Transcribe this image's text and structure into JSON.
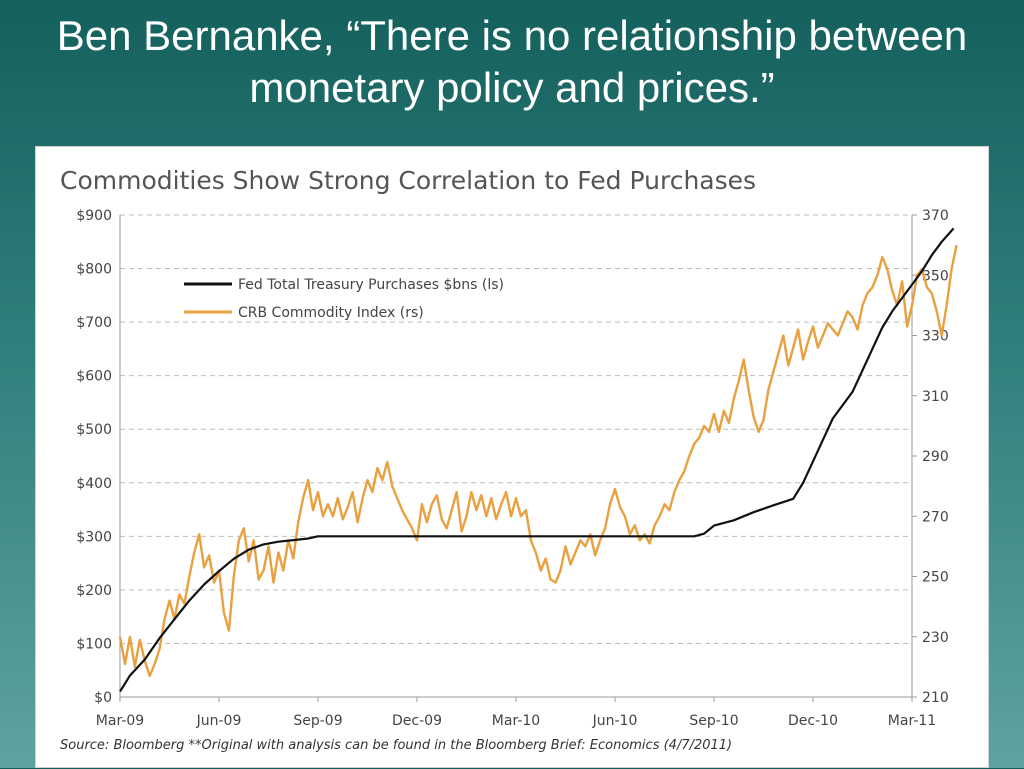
{
  "slide": {
    "title_line1": "Ben Bernanke, “There is no relationship between",
    "title_line2": "monetary policy and prices.”"
  },
  "chart_data": {
    "type": "line",
    "title": "Commodities Show Strong Correlation to Fed Purchases",
    "x_categories": [
      "Mar-09",
      "Jun-09",
      "Sep-09",
      "Dec-09",
      "Mar-10",
      "Jun-10",
      "Sep-10",
      "Dec-10",
      "Mar-11"
    ],
    "y_left": {
      "min": 0,
      "max": 900,
      "ticks": [
        0,
        100,
        200,
        300,
        400,
        500,
        600,
        700,
        800,
        900
      ],
      "tick_labels": [
        "$0",
        "$100",
        "$200",
        "$300",
        "$400",
        "$500",
        "$600",
        "$700",
        "$800",
        "$900"
      ]
    },
    "y_right": {
      "min": 210,
      "max": 370,
      "ticks": [
        210,
        230,
        250,
        270,
        290,
        310,
        330,
        350,
        370
      ],
      "tick_labels": [
        "210",
        "230",
        "250",
        "270",
        "290",
        "310",
        "330",
        "350",
        "370"
      ]
    },
    "grid": true,
    "legend_position": "top-left",
    "series": [
      {
        "name": "Fed Total Treasury Purchases $bns (ls)",
        "axis": "left",
        "color": "#111111",
        "points": [
          [
            0,
            10
          ],
          [
            0.1,
            40
          ],
          [
            0.25,
            70
          ],
          [
            0.4,
            110
          ],
          [
            0.55,
            145
          ],
          [
            0.7,
            180
          ],
          [
            0.85,
            210
          ],
          [
            1.0,
            235
          ],
          [
            1.15,
            258
          ],
          [
            1.3,
            275
          ],
          [
            1.45,
            285
          ],
          [
            1.6,
            290
          ],
          [
            1.75,
            293
          ],
          [
            1.9,
            296
          ],
          [
            2.0,
            300
          ],
          [
            2.3,
            300
          ],
          [
            2.6,
            300
          ],
          [
            3.0,
            300
          ],
          [
            3.5,
            300
          ],
          [
            4.0,
            300
          ],
          [
            4.5,
            300
          ],
          [
            5.0,
            300
          ],
          [
            5.5,
            300
          ],
          [
            5.8,
            300
          ],
          [
            5.9,
            305
          ],
          [
            6.0,
            320
          ],
          [
            6.2,
            330
          ],
          [
            6.4,
            345
          ],
          [
            6.6,
            358
          ],
          [
            6.8,
            370
          ],
          [
            6.9,
            400
          ],
          [
            7.0,
            440
          ],
          [
            7.1,
            480
          ],
          [
            7.2,
            520
          ],
          [
            7.3,
            545
          ],
          [
            7.4,
            570
          ],
          [
            7.5,
            610
          ],
          [
            7.6,
            650
          ],
          [
            7.7,
            690
          ],
          [
            7.8,
            720
          ],
          [
            7.9,
            745
          ],
          [
            8.0,
            770
          ],
          [
            8.1,
            795
          ],
          [
            8.2,
            825
          ],
          [
            8.3,
            850
          ],
          [
            8.42,
            875
          ]
        ]
      },
      {
        "name": "CRB Commodity Index (rs)",
        "axis": "right",
        "color": "#e8a040",
        "points": [
          [
            0,
            230
          ],
          [
            0.05,
            221
          ],
          [
            0.1,
            230
          ],
          [
            0.15,
            220
          ],
          [
            0.2,
            229
          ],
          [
            0.25,
            222
          ],
          [
            0.3,
            217
          ],
          [
            0.35,
            221
          ],
          [
            0.4,
            226
          ],
          [
            0.45,
            236
          ],
          [
            0.5,
            242
          ],
          [
            0.55,
            236
          ],
          [
            0.6,
            244
          ],
          [
            0.65,
            241
          ],
          [
            0.7,
            250
          ],
          [
            0.75,
            258
          ],
          [
            0.8,
            264
          ],
          [
            0.85,
            253
          ],
          [
            0.9,
            257
          ],
          [
            0.95,
            248
          ],
          [
            1.0,
            252
          ],
          [
            1.05,
            238
          ],
          [
            1.1,
            232
          ],
          [
            1.15,
            250
          ],
          [
            1.2,
            262
          ],
          [
            1.25,
            266
          ],
          [
            1.3,
            255
          ],
          [
            1.35,
            262
          ],
          [
            1.4,
            249
          ],
          [
            1.45,
            252
          ],
          [
            1.5,
            260
          ],
          [
            1.55,
            248
          ],
          [
            1.6,
            258
          ],
          [
            1.65,
            252
          ],
          [
            1.7,
            262
          ],
          [
            1.75,
            256
          ],
          [
            1.8,
            268
          ],
          [
            1.85,
            276
          ],
          [
            1.9,
            282
          ],
          [
            1.95,
            272
          ],
          [
            2.0,
            278
          ],
          [
            2.05,
            270
          ],
          [
            2.1,
            274
          ],
          [
            2.15,
            270
          ],
          [
            2.2,
            276
          ],
          [
            2.25,
            269
          ],
          [
            2.3,
            273
          ],
          [
            2.35,
            278
          ],
          [
            2.4,
            268
          ],
          [
            2.45,
            276
          ],
          [
            2.5,
            282
          ],
          [
            2.55,
            278
          ],
          [
            2.6,
            286
          ],
          [
            2.65,
            282
          ],
          [
            2.7,
            288
          ],
          [
            2.75,
            280
          ],
          [
            2.8,
            276
          ],
          [
            2.85,
            272
          ],
          [
            2.9,
            269
          ],
          [
            2.95,
            266
          ],
          [
            3.0,
            262
          ],
          [
            3.05,
            274
          ],
          [
            3.1,
            268
          ],
          [
            3.15,
            274
          ],
          [
            3.2,
            277
          ],
          [
            3.25,
            269
          ],
          [
            3.3,
            266
          ],
          [
            3.35,
            272
          ],
          [
            3.4,
            278
          ],
          [
            3.45,
            265
          ],
          [
            3.5,
            270
          ],
          [
            3.55,
            278
          ],
          [
            3.6,
            272
          ],
          [
            3.65,
            277
          ],
          [
            3.7,
            270
          ],
          [
            3.75,
            276
          ],
          [
            3.8,
            269
          ],
          [
            3.85,
            274
          ],
          [
            3.9,
            278
          ],
          [
            3.95,
            270
          ],
          [
            4.0,
            276
          ],
          [
            4.05,
            270
          ],
          [
            4.1,
            272
          ],
          [
            4.15,
            262
          ],
          [
            4.2,
            258
          ],
          [
            4.25,
            252
          ],
          [
            4.3,
            256
          ],
          [
            4.35,
            249
          ],
          [
            4.4,
            248
          ],
          [
            4.45,
            252
          ],
          [
            4.5,
            260
          ],
          [
            4.55,
            254
          ],
          [
            4.6,
            258
          ],
          [
            4.65,
            262
          ],
          [
            4.7,
            260
          ],
          [
            4.75,
            264
          ],
          [
            4.8,
            257
          ],
          [
            4.85,
            262
          ],
          [
            4.9,
            266
          ],
          [
            4.95,
            274
          ],
          [
            5.0,
            279
          ],
          [
            5.05,
            273
          ],
          [
            5.1,
            270
          ],
          [
            5.15,
            264
          ],
          [
            5.2,
            267
          ],
          [
            5.25,
            262
          ],
          [
            5.3,
            264
          ],
          [
            5.35,
            261
          ],
          [
            5.4,
            267
          ],
          [
            5.45,
            270
          ],
          [
            5.5,
            274
          ],
          [
            5.55,
            272
          ],
          [
            5.6,
            278
          ],
          [
            5.65,
            282
          ],
          [
            5.7,
            285
          ],
          [
            5.75,
            290
          ],
          [
            5.8,
            294
          ],
          [
            5.85,
            296
          ],
          [
            5.9,
            300
          ],
          [
            5.95,
            298
          ],
          [
            6.0,
            304
          ],
          [
            6.05,
            298
          ],
          [
            6.1,
            305
          ],
          [
            6.15,
            301
          ],
          [
            6.2,
            309
          ],
          [
            6.25,
            315
          ],
          [
            6.3,
            322
          ],
          [
            6.35,
            312
          ],
          [
            6.4,
            303
          ],
          [
            6.45,
            298
          ],
          [
            6.5,
            302
          ],
          [
            6.55,
            312
          ],
          [
            6.6,
            318
          ],
          [
            6.65,
            324
          ],
          [
            6.7,
            330
          ],
          [
            6.75,
            320
          ],
          [
            6.8,
            326
          ],
          [
            6.85,
            332
          ],
          [
            6.9,
            322
          ],
          [
            6.95,
            328
          ],
          [
            7.0,
            333
          ],
          [
            7.05,
            326
          ],
          [
            7.1,
            330
          ],
          [
            7.15,
            334
          ],
          [
            7.2,
            332
          ],
          [
            7.25,
            330
          ],
          [
            7.3,
            334
          ],
          [
            7.35,
            338
          ],
          [
            7.4,
            336
          ],
          [
            7.45,
            332
          ],
          [
            7.5,
            340
          ],
          [
            7.55,
            344
          ],
          [
            7.6,
            346
          ],
          [
            7.65,
            350
          ],
          [
            7.7,
            356
          ],
          [
            7.75,
            352
          ],
          [
            7.8,
            345
          ],
          [
            7.85,
            340
          ],
          [
            7.9,
            348
          ],
          [
            7.95,
            333
          ],
          [
            8.0,
            340
          ],
          [
            8.05,
            350
          ],
          [
            8.1,
            352
          ],
          [
            8.15,
            346
          ],
          [
            8.2,
            344
          ],
          [
            8.25,
            338
          ],
          [
            8.3,
            330
          ],
          [
            8.35,
            340
          ],
          [
            8.4,
            352
          ],
          [
            8.45,
            360
          ]
        ]
      }
    ],
    "source": "Source:  Bloomberg     **Original with analysis can be found in the Bloomberg Brief: Economics (4/7/2011)"
  }
}
